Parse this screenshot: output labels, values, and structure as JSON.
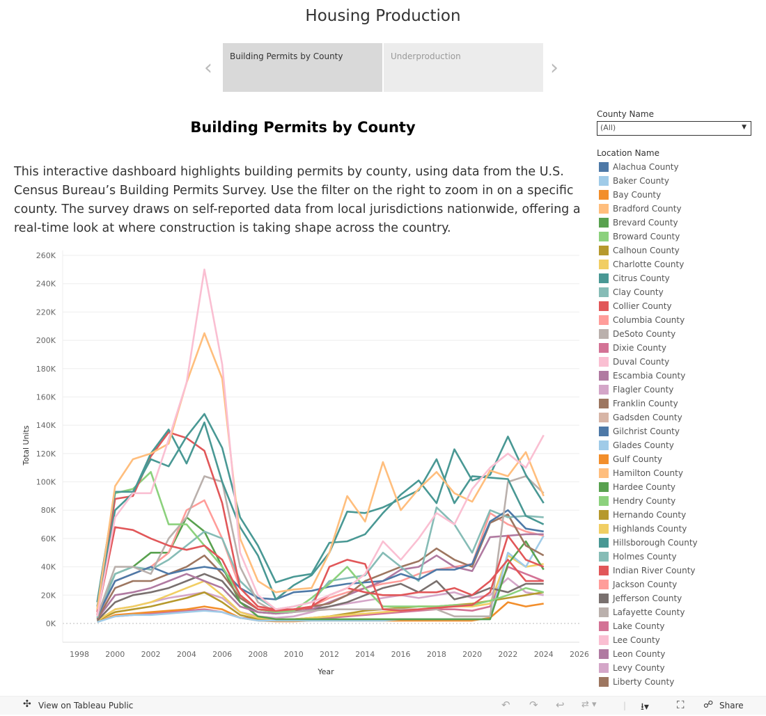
{
  "header": {
    "title": "Housing Production",
    "tabs": [
      {
        "label": "Building Permits by County"
      },
      {
        "label": "Underproduction"
      }
    ],
    "prev_icon": "chevron-left-icon",
    "next_icon": "chevron-right-icon"
  },
  "dashboard": {
    "title": "Building Permits by County",
    "description": "This interactive dashboard highlights building permits by county, using data from the U.S. Census Bureau’s Building Permits Survey. Use the filter on the right to zoom in on a specific county. The survey draws on self-reported data from local jurisdictions nationwide, offering a real-time look at where construction is taking shape across the country."
  },
  "filter": {
    "label": "County Name",
    "value": "(All)"
  },
  "legend": {
    "title": "Location Name",
    "items": [
      {
        "label": "Alachua County",
        "color": "#4e79a7"
      },
      {
        "label": "Baker County",
        "color": "#a0cbe8"
      },
      {
        "label": "Bay County",
        "color": "#f28e2b"
      },
      {
        "label": "Bradford County",
        "color": "#ffbe7d"
      },
      {
        "label": "Brevard County",
        "color": "#59a14f"
      },
      {
        "label": "Broward County",
        "color": "#8cd17d"
      },
      {
        "label": "Calhoun County",
        "color": "#b6992d"
      },
      {
        "label": "Charlotte County",
        "color": "#f1ce63"
      },
      {
        "label": "Citrus County",
        "color": "#499894"
      },
      {
        "label": "Clay County",
        "color": "#86bcb6"
      },
      {
        "label": "Collier County",
        "color": "#e15759"
      },
      {
        "label": "Columbia County",
        "color": "#ff9d9a"
      },
      {
        "label": "DeSoto County",
        "color": "#bab0ac"
      },
      {
        "label": "Dixie County",
        "color": "#d37295"
      },
      {
        "label": "Duval County",
        "color": "#fabfd2"
      },
      {
        "label": "Escambia County",
        "color": "#b07aa1"
      },
      {
        "label": "Flagler County",
        "color": "#d4a6c8"
      },
      {
        "label": "Franklin County",
        "color": "#9d7660"
      },
      {
        "label": "Gadsden County",
        "color": "#d7b5a6"
      },
      {
        "label": "Gilchrist County",
        "color": "#4e79a7"
      },
      {
        "label": "Glades County",
        "color": "#a0cbe8"
      },
      {
        "label": "Gulf County",
        "color": "#f28e2b"
      },
      {
        "label": "Hamilton County",
        "color": "#ffbe7d"
      },
      {
        "label": "Hardee County",
        "color": "#59a14f"
      },
      {
        "label": "Hendry County",
        "color": "#8cd17d"
      },
      {
        "label": "Hernando County",
        "color": "#b6992d"
      },
      {
        "label": "Highlands County",
        "color": "#f1ce63"
      },
      {
        "label": "Hillsborough County",
        "color": "#499894"
      },
      {
        "label": "Holmes County",
        "color": "#86bcb6"
      },
      {
        "label": "Indian River County",
        "color": "#e15759"
      },
      {
        "label": "Jackson County",
        "color": "#ff9d9a"
      },
      {
        "label": "Jefferson County",
        "color": "#79706e"
      },
      {
        "label": "Lafayette County",
        "color": "#bab0ac"
      },
      {
        "label": "Lake County",
        "color": "#d37295"
      },
      {
        "label": "Lee County",
        "color": "#fabfd2"
      },
      {
        "label": "Leon County",
        "color": "#b07aa1"
      },
      {
        "label": "Levy County",
        "color": "#d4a6c8"
      },
      {
        "label": "Liberty County",
        "color": "#9d7660"
      }
    ]
  },
  "chart_data": {
    "type": "line",
    "xlabel": "Year",
    "ylabel": "Total Units",
    "xlim": [
      1998,
      2026
    ],
    "ylim": [
      0,
      260000
    ],
    "xticks": [
      "1998",
      "2000",
      "2002",
      "2004",
      "2006",
      "2008",
      "2010",
      "2012",
      "2014",
      "2016",
      "2018",
      "2020",
      "2022",
      "2024",
      "2026"
    ],
    "yticks": [
      "0K",
      "20K",
      "40K",
      "60K",
      "80K",
      "100K",
      "120K",
      "140K",
      "160K",
      "180K",
      "200K",
      "220K",
      "240K",
      "260K"
    ],
    "grid": true,
    "x": [
      1999,
      2000,
      2001,
      2002,
      2003,
      2004,
      2005,
      2006,
      2007,
      2008,
      2009,
      2010,
      2011,
      2012,
      2013,
      2014,
      2015,
      2016,
      2017,
      2018,
      2019,
      2020,
      2021,
      2022,
      2023,
      2024
    ],
    "series": [
      {
        "color": "#fabfd2",
        "values": [
          5000,
          75000,
          92000,
          92000,
          130000,
          170000,
          250000,
          183000,
          50000,
          20000,
          10000,
          12000,
          15000,
          20000,
          25000,
          35000,
          58000,
          45000,
          60000,
          78000,
          70000,
          95000,
          110000,
          120000,
          110000,
          133000
        ]
      },
      {
        "color": "#ffbe7d",
        "values": [
          10000,
          97000,
          116000,
          120000,
          127000,
          170000,
          205000,
          173000,
          60000,
          30000,
          22000,
          24000,
          25000,
          50000,
          90000,
          72000,
          114000,
          80000,
          95000,
          107000,
          92000,
          86000,
          108000,
          104000,
          121000,
          90000
        ]
      },
      {
        "color": "#499894",
        "values": [
          15000,
          93000,
          93000,
          116000,
          111000,
          132000,
          148000,
          124000,
          75000,
          55000,
          29000,
          33000,
          35000,
          57000,
          58000,
          63000,
          78000,
          91000,
          101000,
          85000,
          123000,
          101000,
          105000,
          132000,
          105000,
          85000
        ]
      },
      {
        "color": "#499894",
        "values": [
          12000,
          80000,
          92000,
          120000,
          137000,
          113000,
          142000,
          100000,
          68000,
          48000,
          17000,
          27000,
          34000,
          50000,
          79000,
          78000,
          82000,
          88000,
          94000,
          116000,
          85000,
          104000,
          103000,
          102000,
          76000,
          70000
        ]
      },
      {
        "color": "#e15759",
        "values": [
          8000,
          88000,
          90000,
          118000,
          135000,
          131000,
          122000,
          85000,
          25000,
          12000,
          10000,
          10000,
          12000,
          20000,
          25000,
          22000,
          20000,
          20000,
          22000,
          22000,
          25000,
          20000,
          30000,
          45000,
          30000,
          30000
        ]
      },
      {
        "color": "#e15759",
        "values": [
          6000,
          68000,
          66000,
          60000,
          55000,
          52000,
          55000,
          45000,
          20000,
          10000,
          9000,
          10000,
          11000,
          40000,
          45000,
          42000,
          10000,
          9000,
          10000,
          11000,
          12000,
          13000,
          22000,
          62000,
          45000,
          40000
        ]
      },
      {
        "color": "#8cd17d",
        "values": [
          10000,
          92000,
          95000,
          107000,
          70000,
          70000,
          55000,
          40000,
          20000,
          10000,
          8000,
          9000,
          18000,
          28000,
          40000,
          25000,
          12000,
          12000,
          12000,
          12000,
          13000,
          13000,
          16000,
          20000,
          25000,
          22000
        ]
      },
      {
        "color": "#bab0ac",
        "values": [
          5000,
          40000,
          40000,
          35000,
          60000,
          75000,
          104000,
          100000,
          40000,
          15000,
          8000,
          8000,
          9000,
          10000,
          10000,
          10000,
          10000,
          10000,
          10000,
          10000,
          5000,
          5000,
          5000,
          100000,
          104000,
          92000
        ]
      },
      {
        "color": "#4e79a7",
        "values": [
          5000,
          30000,
          35000,
          40000,
          35000,
          38000,
          40000,
          38000,
          25000,
          18000,
          17000,
          22000,
          23000,
          26000,
          28000,
          29000,
          30000,
          35000,
          31000,
          38000,
          38000,
          42000,
          72000,
          80000,
          67000,
          65000
        ]
      },
      {
        "color": "#86bcb6",
        "values": [
          4000,
          35000,
          40000,
          38000,
          45000,
          55000,
          65000,
          60000,
          30000,
          18000,
          10000,
          12000,
          15000,
          30000,
          32000,
          34000,
          50000,
          40000,
          30000,
          82000,
          70000,
          50000,
          80000,
          75000,
          76000,
          75000
        ]
      },
      {
        "color": "#9d7660",
        "values": [
          3000,
          25000,
          30000,
          30000,
          35000,
          40000,
          48000,
          35000,
          18000,
          10000,
          8000,
          9000,
          12000,
          14000,
          20000,
          30000,
          35000,
          40000,
          44000,
          53000,
          45000,
          40000,
          71000,
          77000,
          55000,
          48000
        ]
      },
      {
        "color": "#b07aa1",
        "values": [
          3000,
          20000,
          22000,
          25000,
          30000,
          35000,
          30000,
          25000,
          12000,
          8000,
          7000,
          8000,
          10000,
          15000,
          20000,
          25000,
          30000,
          38000,
          40000,
          48000,
          40000,
          37000,
          61000,
          62000,
          63000,
          63000
        ]
      },
      {
        "color": "#ff9d9a",
        "values": [
          4000,
          30000,
          35000,
          40000,
          50000,
          80000,
          87000,
          60000,
          25000,
          12000,
          9000,
          10000,
          12000,
          18000,
          22000,
          25000,
          28000,
          30000,
          35000,
          38000,
          40000,
          42000,
          78000,
          70000,
          65000,
          62000
        ]
      },
      {
        "color": "#59a14f",
        "values": [
          6000,
          35000,
          40000,
          50000,
          50000,
          75000,
          65000,
          40000,
          15000,
          5000,
          3000,
          3000,
          3000,
          3000,
          3000,
          3000,
          3000,
          3000,
          3000,
          3000,
          3000,
          3000,
          3000,
          42000,
          58000,
          38000
        ]
      },
      {
        "color": "#79706e",
        "values": [
          2000,
          15000,
          20000,
          22000,
          25000,
          30000,
          35000,
          30000,
          15000,
          8000,
          7000,
          8000,
          10000,
          12000,
          15000,
          20000,
          25000,
          28000,
          22000,
          30000,
          17000,
          20000,
          25000,
          22000,
          28000,
          28000
        ]
      },
      {
        "color": "#a0cbe8",
        "values": [
          1000,
          5000,
          6000,
          6000,
          7000,
          8000,
          9000,
          8000,
          4000,
          2000,
          2000,
          2000,
          2000,
          2000,
          2000,
          2000,
          2000,
          3000,
          3000,
          3000,
          3000,
          3000,
          3000,
          50000,
          40000,
          62000
        ]
      },
      {
        "color": "#f1ce63",
        "values": [
          2000,
          10000,
          12000,
          15000,
          20000,
          25000,
          30000,
          20000,
          8000,
          4000,
          3000,
          3000,
          4000,
          5000,
          6000,
          7000,
          8000,
          9000,
          10000,
          11000,
          12000,
          12000,
          14000,
          48000,
          40000,
          42000
        ]
      },
      {
        "color": "#b6992d",
        "values": [
          2000,
          8000,
          10000,
          12000,
          15000,
          18000,
          22000,
          15000,
          6000,
          3000,
          3000,
          3000,
          4000,
          5000,
          7000,
          9000,
          10000,
          11000,
          12000,
          12000,
          13000,
          14000,
          16000,
          18000,
          20000,
          22000
        ]
      },
      {
        "color": "#d4a6c8",
        "values": [
          2000,
          10000,
          12000,
          15000,
          18000,
          20000,
          22000,
          18000,
          8000,
          5000,
          4000,
          5000,
          8000,
          12000,
          14000,
          16000,
          18000,
          20000,
          18000,
          20000,
          22000,
          18000,
          20000,
          32000,
          22000,
          20000
        ]
      },
      {
        "color": "#f28e2b",
        "values": [
          1000,
          6000,
          7000,
          8000,
          9000,
          10000,
          12000,
          10000,
          4000,
          2000,
          1500,
          1500,
          2000,
          2000,
          2000,
          2000,
          2000,
          2000,
          2000,
          2000,
          2000,
          2000,
          4000,
          15000,
          12000,
          14000
        ]
      },
      {
        "color": "#d37295",
        "values": [
          1500,
          5000,
          6000,
          7000,
          8000,
          9000,
          10000,
          8000,
          4000,
          3000,
          2500,
          2500,
          3000,
          4000,
          5000,
          6000,
          7000,
          8000,
          9000,
          10000,
          10000,
          9000,
          12000,
          40000,
          35000,
          30000
        ]
      }
    ]
  },
  "toolbar": {
    "view_label": "View on Tableau Public",
    "share_label": "Share"
  }
}
